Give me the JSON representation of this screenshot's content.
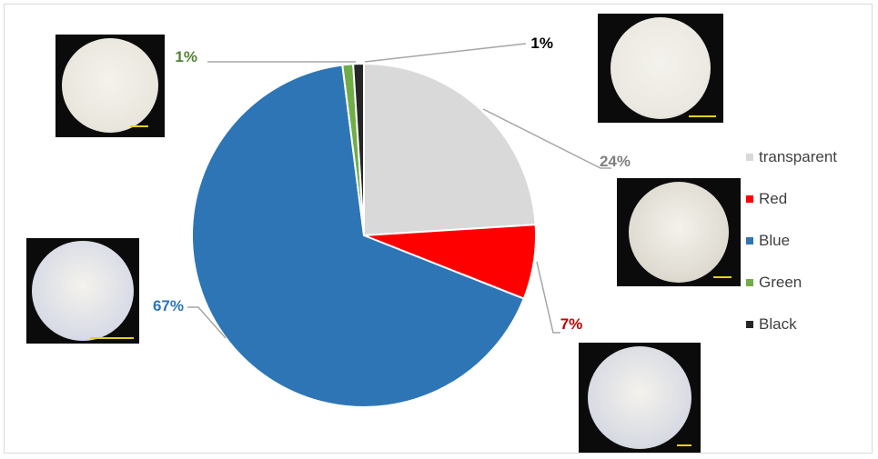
{
  "chart_data": {
    "type": "pie",
    "title": "",
    "start_angle_deg": 0,
    "direction": "clockwise",
    "slices": [
      {
        "label": "transparent",
        "value": 24,
        "display": "24%",
        "color": "#d9d9d9",
        "label_color": "#808080"
      },
      {
        "label": "Red",
        "value": 7,
        "display": "7%",
        "color": "#ff0000",
        "label_color": "#c00000"
      },
      {
        "label": "Blue",
        "value": 67,
        "display": "67%",
        "color": "#2e75b6",
        "label_color": "#2e75b6"
      },
      {
        "label": "Green",
        "value": 1,
        "display": "1%",
        "color": "#70ad47",
        "label_color": "#548235"
      },
      {
        "label": "Black",
        "value": 1,
        "display": "1%",
        "color": "#262626",
        "label_color": "#000000"
      }
    ],
    "legend": {
      "position": "right",
      "entries": [
        "transparent",
        "Red",
        "Blue",
        "Green",
        "Black"
      ]
    }
  },
  "thumbnails": [
    {
      "name": "thumb-green",
      "disc": "#e8e6dc",
      "scalebar": true
    },
    {
      "name": "thumb-black",
      "disc": "#eae8e0",
      "scalebar": true
    },
    {
      "name": "thumb-transparent",
      "disc": "#dedad0",
      "scalebar": true
    },
    {
      "name": "thumb-blue",
      "disc": "#d8dbe6",
      "scalebar": true
    },
    {
      "name": "thumb-red",
      "disc": "#d7dae3",
      "scalebar": true
    }
  ]
}
